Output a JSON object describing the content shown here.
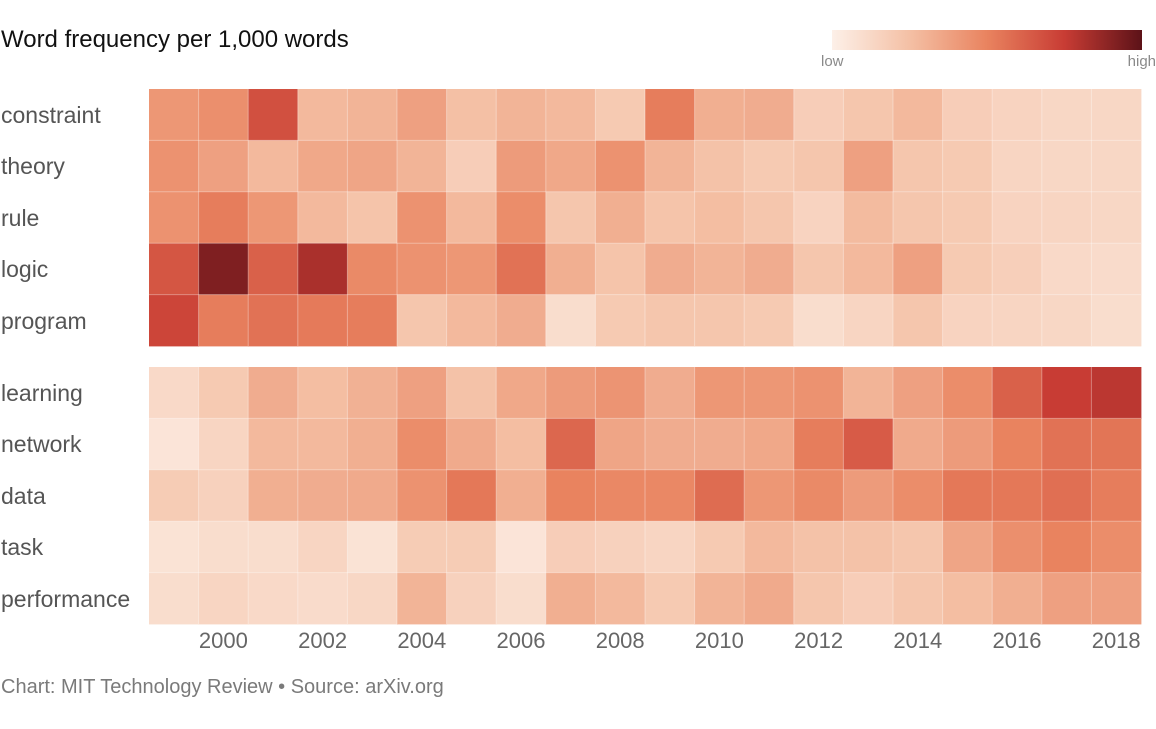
{
  "title": "Word frequency per 1,000 words",
  "legend": {
    "low_label": "low",
    "high_label": "high",
    "low_color": "#fdf0e8",
    "high_color": "#5c1218"
  },
  "caption": "Chart: MIT Technology Review • Source: arXiv.org",
  "chart_data": {
    "type": "heatmap",
    "title": "Word frequency per 1,000 words",
    "years": [
      1999,
      2000,
      2001,
      2002,
      2003,
      2004,
      2005,
      2006,
      2007,
      2008,
      2009,
      2010,
      2011,
      2012,
      2013,
      2014,
      2015,
      2016,
      2017,
      2018
    ],
    "x_tick_labels": [
      "2000",
      "2002",
      "2004",
      "2006",
      "2008",
      "2010",
      "2012",
      "2014",
      "2016",
      "2018"
    ],
    "scale": "relative intensity 0 (low) to 1 (high)",
    "groups": [
      {
        "rows": [
          {
            "word": "constraint",
            "values": [
              0.42,
              0.45,
              0.68,
              0.28,
              0.3,
              0.38,
              0.25,
              0.3,
              0.28,
              0.2,
              0.52,
              0.32,
              0.33,
              0.18,
              0.22,
              0.28,
              0.18,
              0.15,
              0.13,
              0.13
            ]
          },
          {
            "word": "theory",
            "values": [
              0.44,
              0.38,
              0.28,
              0.35,
              0.36,
              0.3,
              0.18,
              0.4,
              0.35,
              0.44,
              0.3,
              0.24,
              0.2,
              0.22,
              0.38,
              0.22,
              0.2,
              0.14,
              0.13,
              0.13
            ]
          },
          {
            "word": "rule",
            "values": [
              0.44,
              0.52,
              0.42,
              0.28,
              0.23,
              0.44,
              0.28,
              0.46,
              0.22,
              0.32,
              0.23,
              0.26,
              0.22,
              0.15,
              0.27,
              0.22,
              0.2,
              0.15,
              0.14,
              0.13
            ]
          },
          {
            "word": "logic",
            "values": [
              0.66,
              0.92,
              0.62,
              0.82,
              0.47,
              0.44,
              0.42,
              0.56,
              0.32,
              0.23,
              0.33,
              0.3,
              0.33,
              0.22,
              0.28,
              0.38,
              0.2,
              0.17,
              0.12,
              0.11
            ]
          },
          {
            "word": "program",
            "values": [
              0.72,
              0.52,
              0.56,
              0.53,
              0.52,
              0.22,
              0.28,
              0.33,
              0.1,
              0.2,
              0.22,
              0.22,
              0.2,
              0.1,
              0.14,
              0.22,
              0.15,
              0.14,
              0.13,
              0.1
            ]
          }
        ]
      },
      {
        "rows": [
          {
            "word": "learning",
            "values": [
              0.12,
              0.2,
              0.33,
              0.26,
              0.31,
              0.38,
              0.24,
              0.35,
              0.4,
              0.43,
              0.33,
              0.42,
              0.42,
              0.44,
              0.3,
              0.38,
              0.46,
              0.62,
              0.75,
              0.78
            ]
          },
          {
            "word": "network",
            "values": [
              0.06,
              0.14,
              0.28,
              0.28,
              0.32,
              0.46,
              0.34,
              0.26,
              0.6,
              0.36,
              0.33,
              0.33,
              0.35,
              0.52,
              0.64,
              0.34,
              0.4,
              0.5,
              0.56,
              0.55
            ]
          },
          {
            "word": "data",
            "values": [
              0.19,
              0.16,
              0.32,
              0.33,
              0.34,
              0.44,
              0.54,
              0.32,
              0.5,
              0.48,
              0.48,
              0.58,
              0.42,
              0.47,
              0.4,
              0.46,
              0.54,
              0.54,
              0.57,
              0.52
            ]
          },
          {
            "word": "task",
            "values": [
              0.07,
              0.1,
              0.1,
              0.14,
              0.07,
              0.19,
              0.19,
              0.06,
              0.18,
              0.16,
              0.14,
              0.2,
              0.28,
              0.24,
              0.24,
              0.22,
              0.36,
              0.45,
              0.5,
              0.46
            ]
          },
          {
            "word": "performance",
            "values": [
              0.1,
              0.14,
              0.12,
              0.11,
              0.13,
              0.3,
              0.16,
              0.1,
              0.32,
              0.28,
              0.2,
              0.3,
              0.34,
              0.22,
              0.18,
              0.22,
              0.26,
              0.32,
              0.38,
              0.38
            ]
          }
        ]
      }
    ]
  }
}
